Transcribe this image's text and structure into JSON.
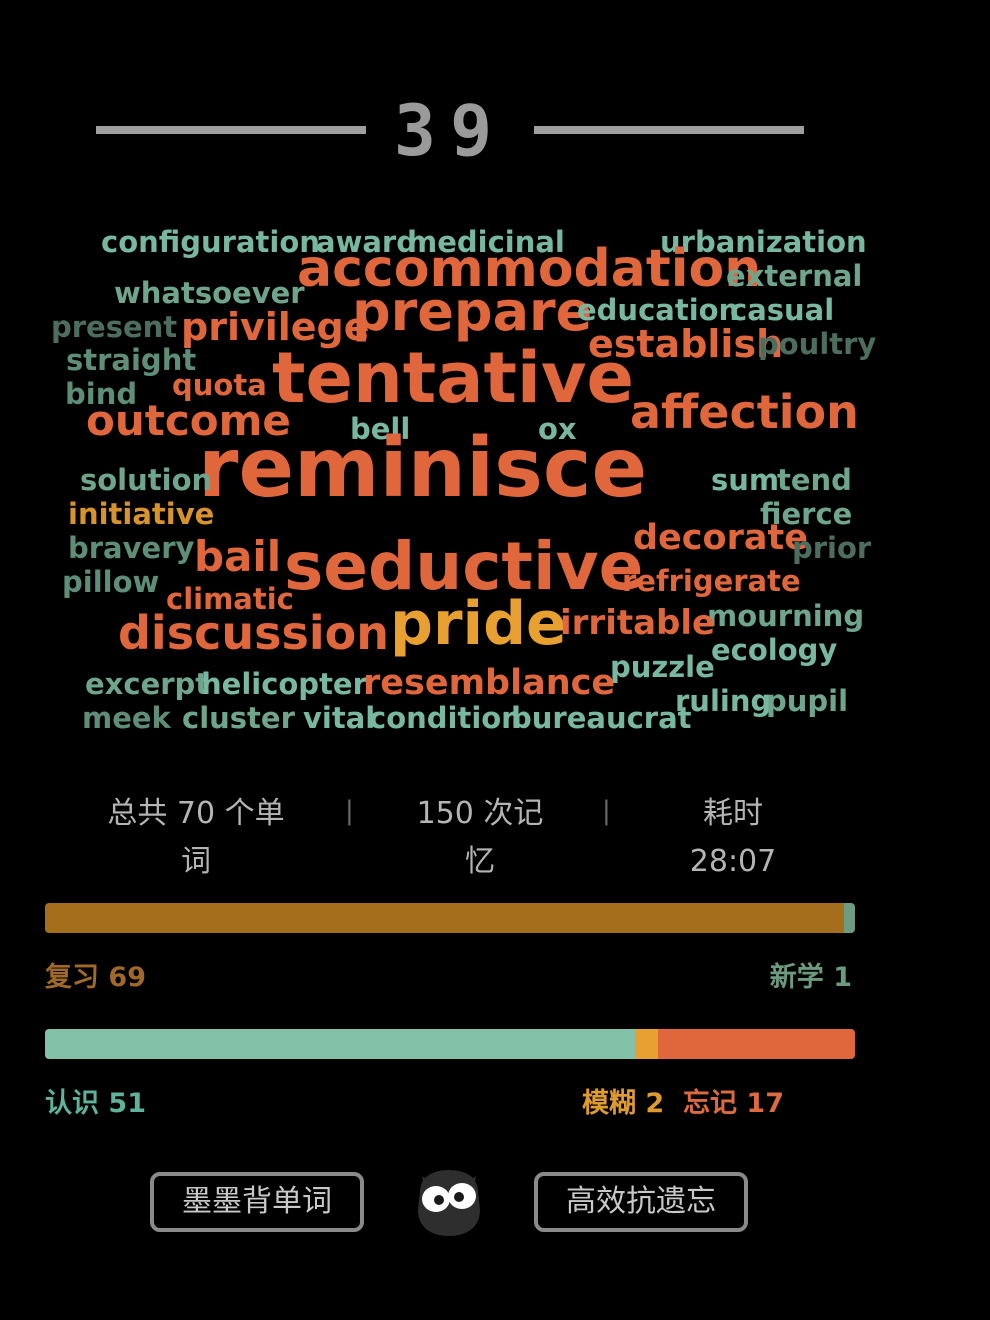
{
  "day_number": "39",
  "colors": {
    "review": "#a46e1c",
    "new": "#6d9c83",
    "known": "#83c2a8",
    "vague": "#e8a030",
    "forgot": "#e0663c",
    "label_review": "#a0692a",
    "label_new": "#6c9a7f",
    "label_known": "#5fb39a",
    "label_vague": "#e09b2e",
    "label_forgot": "#de6a40"
  },
  "word_cloud": [
    {
      "text": "configuration",
      "color": "#79b8a0"
    },
    {
      "text": "award",
      "color": "#79b8a0"
    },
    {
      "text": "medicinal",
      "color": "#79b8a0"
    },
    {
      "text": "urbanization",
      "color": "#79b8a0"
    },
    {
      "text": "accommodation",
      "color": "#e0663c"
    },
    {
      "text": "external",
      "color": "#6ea58c"
    },
    {
      "text": "whatsoever",
      "color": "#6ea58c"
    },
    {
      "text": "prepare",
      "color": "#e0663c"
    },
    {
      "text": "education",
      "color": "#79b8a0"
    },
    {
      "text": "casual",
      "color": "#79b8a0"
    },
    {
      "text": "present",
      "color": "#4d6e5e"
    },
    {
      "text": "privilege",
      "color": "#e0663c"
    },
    {
      "text": "establish",
      "color": "#e0663c"
    },
    {
      "text": "poultry",
      "color": "#4d6e5e"
    },
    {
      "text": "straight",
      "color": "#5f8e78"
    },
    {
      "text": "tentative",
      "color": "#e0663c"
    },
    {
      "text": "quota",
      "color": "#e0663c"
    },
    {
      "text": "bind",
      "color": "#5f8e78"
    },
    {
      "text": "affection",
      "color": "#e0663c"
    },
    {
      "text": "outcome",
      "color": "#e0663c"
    },
    {
      "text": "bell",
      "color": "#79b8a0"
    },
    {
      "text": "ox",
      "color": "#79b8a0"
    },
    {
      "text": "reminisce",
      "color": "#e0663c"
    },
    {
      "text": "solution",
      "color": "#6ea58c"
    },
    {
      "text": "sum",
      "color": "#79b8a0"
    },
    {
      "text": "tend",
      "color": "#6ea58c"
    },
    {
      "text": "initiative",
      "color": "#d8932c"
    },
    {
      "text": "fierce",
      "color": "#6ea58c"
    },
    {
      "text": "decorate",
      "color": "#e0663c"
    },
    {
      "text": "bravery",
      "color": "#5f8e78"
    },
    {
      "text": "bail",
      "color": "#e0663c"
    },
    {
      "text": "seductive",
      "color": "#e0663c"
    },
    {
      "text": "prior",
      "color": "#4d6e5e"
    },
    {
      "text": "pillow",
      "color": "#5f8e78"
    },
    {
      "text": "refrigerate",
      "color": "#e0663c"
    },
    {
      "text": "climatic",
      "color": "#e0663c"
    },
    {
      "text": "mourning",
      "color": "#6ea58c"
    },
    {
      "text": "discussion",
      "color": "#e0663c"
    },
    {
      "text": "pride",
      "color": "#e8a030"
    },
    {
      "text": "irritable",
      "color": "#e0663c"
    },
    {
      "text": "ecology",
      "color": "#79b8a0"
    },
    {
      "text": "puzzle",
      "color": "#79b8a0"
    },
    {
      "text": "excerpt",
      "color": "#6ea58c"
    },
    {
      "text": "helicopter",
      "color": "#79b8a0"
    },
    {
      "text": "resemblance",
      "color": "#e0663c"
    },
    {
      "text": "ruling",
      "color": "#79b8a0"
    },
    {
      "text": "pupil",
      "color": "#6ea58c"
    },
    {
      "text": "meek",
      "color": "#5f8e78"
    },
    {
      "text": "cluster",
      "color": "#6ea58c"
    },
    {
      "text": "vital",
      "color": "#79b8a0"
    },
    {
      "text": "condition",
      "color": "#79b8a0"
    },
    {
      "text": "bureaucrat",
      "color": "#79b8a0"
    }
  ],
  "stats": {
    "total_words_line1": "总共 70 个单",
    "total_words_line2": "词",
    "separator": "|",
    "memories_line1": "150 次记",
    "memories_line2": "忆",
    "time_label": "耗时",
    "time_value": "28:07"
  },
  "progress_learn": {
    "review_fraction": 0.986,
    "new_fraction": 0.014,
    "review_label": "复习",
    "review_count": "69",
    "new_label": "新学",
    "new_count": "1"
  },
  "progress_memory": {
    "known_fraction": 0.729,
    "vague_fraction": 0.029,
    "forgot_fraction": 0.243,
    "known_label": "认识",
    "known_count": "51",
    "vague_label": "模糊",
    "vague_count": "2",
    "forgot_label": "忘记",
    "forgot_count": "17"
  },
  "footer": {
    "left_button": "墨墨背单词",
    "right_button": "高效抗遗忘"
  }
}
